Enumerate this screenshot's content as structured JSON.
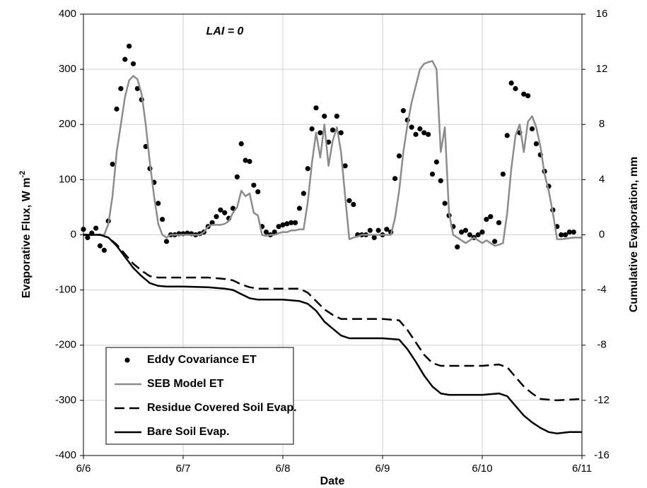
{
  "chart_data": {
    "type": "line",
    "annotation": "LAI = 0",
    "x_label": "Date",
    "y_label": "Evaporative  Flux, W m",
    "y_label_sup": "-2",
    "y2_label": "Cumulative Evaporation, mm",
    "xlim": [
      0,
      120
    ],
    "xticks": [
      {
        "value": 0,
        "label": "6/6"
      },
      {
        "value": 24,
        "label": "6/7"
      },
      {
        "value": 48,
        "label": "6/8"
      },
      {
        "value": 72,
        "label": "6/9"
      },
      {
        "value": 96,
        "label": "6/10"
      },
      {
        "value": 120,
        "label": "6/11"
      }
    ],
    "ylim": [
      -400,
      400
    ],
    "yticks": [
      -400,
      -300,
      -200,
      -100,
      0,
      100,
      200,
      300,
      400
    ],
    "y2lim": [
      -16,
      16
    ],
    "y2ticks": [
      -16,
      -12,
      -8,
      -4,
      0,
      4,
      8,
      12,
      16
    ],
    "grid": true,
    "legend": "lower left",
    "series": [
      {
        "name": "Eddy Covariance ET",
        "color": "#000000",
        "mode": "markers",
        "x": [
          0,
          1,
          2,
          3,
          4,
          5,
          6,
          7,
          8,
          9,
          10,
          11,
          12,
          13,
          14,
          15,
          16,
          17,
          18,
          19,
          20,
          21,
          22,
          23,
          24,
          25,
          26,
          27,
          28,
          29,
          30,
          31,
          32,
          33,
          34,
          35,
          36,
          37,
          38,
          39,
          40,
          41,
          42,
          43,
          44,
          45,
          46,
          47,
          48,
          49,
          50,
          51,
          52,
          53,
          54,
          55,
          56,
          57,
          58,
          59,
          60,
          61,
          62,
          63,
          64,
          65,
          66,
          67,
          68,
          69,
          70,
          71,
          72,
          73,
          74,
          75,
          76,
          77,
          78,
          79,
          80,
          81,
          82,
          83,
          84,
          85,
          86,
          87,
          88,
          89,
          90,
          91,
          92,
          93,
          94,
          95,
          96,
          97,
          98,
          99,
          100,
          101,
          102,
          103,
          104,
          105,
          106,
          107,
          108,
          109,
          110,
          111,
          112,
          113,
          114,
          115,
          116,
          117,
          118
        ],
        "values": [
          10,
          -5,
          3,
          12,
          -20,
          -28,
          25,
          128,
          228,
          265,
          318,
          342,
          310,
          265,
          245,
          160,
          120,
          95,
          57,
          28,
          -12,
          0,
          0,
          2,
          2,
          3,
          2,
          0,
          2,
          5,
          15,
          22,
          33,
          45,
          40,
          30,
          48,
          105,
          165,
          135,
          133,
          90,
          78,
          15,
          5,
          0,
          5,
          15,
          18,
          20,
          22,
          22,
          48,
          75,
          120,
          192,
          230,
          185,
          215,
          168,
          190,
          215,
          185,
          125,
          62,
          55,
          0,
          0,
          0,
          8,
          -5,
          8,
          0,
          10,
          5,
          102,
          143,
          225,
          208,
          195,
          182,
          192,
          185,
          182,
          110,
          132,
          98,
          57,
          35,
          15,
          -22,
          5,
          8,
          0,
          -5,
          0,
          5,
          28,
          33,
          -12,
          22,
          110,
          180,
          275,
          265,
          185,
          255,
          252,
          192,
          165,
          145,
          115,
          88,
          45,
          15,
          0,
          0,
          5,
          5
        ]
      },
      {
        "name": "SEB Model ET",
        "color": "#8c8c8c",
        "mode": "line",
        "dash": "solid",
        "x": [
          0,
          1,
          2,
          3,
          4,
          5,
          6,
          7,
          8,
          9,
          10,
          11,
          12,
          13,
          14,
          15,
          16,
          17,
          18,
          19,
          20,
          21,
          22,
          23,
          24,
          25,
          26,
          27,
          28,
          29,
          30,
          31,
          32,
          33,
          34,
          35,
          36,
          37,
          38,
          39,
          40,
          41,
          42,
          43,
          44,
          45,
          46,
          47,
          48,
          49,
          50,
          51,
          52,
          53,
          54,
          55,
          56,
          57,
          58,
          59,
          60,
          61,
          62,
          63,
          64,
          65,
          66,
          67,
          68,
          69,
          70,
          71,
          72,
          73,
          74,
          75,
          76,
          77,
          78,
          79,
          80,
          81,
          82,
          83,
          84,
          85,
          86,
          87,
          88,
          89,
          90,
          91,
          92,
          93,
          94,
          95,
          96,
          97,
          98,
          99,
          100,
          101,
          102,
          103,
          104,
          105,
          106,
          107,
          108,
          109,
          110,
          111,
          112,
          113,
          114,
          115,
          116,
          117,
          118,
          119,
          120
        ],
        "values": [
          0,
          0,
          0,
          0,
          0,
          0,
          20,
          70,
          150,
          200,
          250,
          280,
          288,
          282,
          255,
          200,
          130,
          70,
          20,
          0,
          -5,
          0,
          0,
          0,
          0,
          0,
          0,
          0,
          0,
          5,
          15,
          18,
          18,
          18,
          20,
          25,
          40,
          50,
          80,
          70,
          75,
          40,
          35,
          0,
          -2,
          0,
          0,
          3,
          5,
          5,
          8,
          8,
          10,
          10,
          60,
          130,
          185,
          140,
          200,
          125,
          170,
          195,
          150,
          70,
          -8,
          -5,
          -3,
          0,
          0,
          0,
          0,
          0,
          0,
          0,
          0,
          30,
          80,
          150,
          200,
          240,
          270,
          300,
          310,
          313,
          315,
          300,
          150,
          195,
          40,
          0,
          -5,
          -10,
          -15,
          -10,
          -5,
          -10,
          -15,
          -10,
          -15,
          -20,
          -18,
          -15,
          40,
          120,
          180,
          200,
          150,
          205,
          215,
          195,
          160,
          110,
          80,
          40,
          -8,
          -8,
          -7,
          -6,
          -5,
          -5,
          -5
        ]
      },
      {
        "name": "Residue Covered Soil Evap.",
        "color": "#000000",
        "mode": "line",
        "dash": "dashed",
        "axis": "y2",
        "x": [
          0,
          4,
          6,
          8,
          10,
          12,
          14,
          16,
          18,
          24,
          30,
          34,
          36,
          38,
          40,
          42,
          52,
          54,
          56,
          58,
          60,
          62,
          72,
          76,
          78,
          80,
          82,
          84,
          86,
          96,
          100,
          102,
          104,
          106,
          108,
          110,
          114,
          120
        ],
        "values": [
          0,
          0,
          -0.2,
          -0.7,
          -1.4,
          -2.1,
          -2.6,
          -3.0,
          -3.1,
          -3.1,
          -3.1,
          -3.2,
          -3.3,
          -3.6,
          -3.8,
          -3.9,
          -3.9,
          -4.2,
          -4.8,
          -5.4,
          -5.8,
          -6.1,
          -6.1,
          -6.2,
          -6.9,
          -7.8,
          -8.7,
          -9.3,
          -9.5,
          -9.5,
          -9.4,
          -9.6,
          -10.3,
          -11.0,
          -11.5,
          -11.9,
          -12.0,
          -11.9
        ]
      },
      {
        "name": "Bare Soil Evap.",
        "color": "#000000",
        "mode": "line",
        "dash": "solid",
        "axis": "y2",
        "x": [
          0,
          4,
          6,
          8,
          10,
          12,
          14,
          16,
          18,
          20,
          24,
          30,
          34,
          36,
          38,
          40,
          42,
          48,
          52,
          54,
          56,
          58,
          60,
          62,
          64,
          72,
          76,
          78,
          80,
          82,
          84,
          86,
          88,
          96,
          100,
          102,
          104,
          106,
          108,
          110,
          112,
          114,
          117,
          120
        ],
        "values": [
          0,
          0,
          -0.2,
          -0.8,
          -1.6,
          -2.4,
          -3.0,
          -3.5,
          -3.7,
          -3.75,
          -3.75,
          -3.8,
          -3.9,
          -4.0,
          -4.3,
          -4.6,
          -4.7,
          -4.7,
          -4.8,
          -5.0,
          -5.5,
          -6.3,
          -6.8,
          -7.3,
          -7.5,
          -7.5,
          -7.6,
          -8.3,
          -9.2,
          -10.2,
          -11.0,
          -11.5,
          -11.6,
          -11.6,
          -11.5,
          -11.7,
          -12.4,
          -13.1,
          -13.6,
          -14.0,
          -14.3,
          -14.4,
          -14.3,
          -14.3
        ]
      }
    ]
  }
}
